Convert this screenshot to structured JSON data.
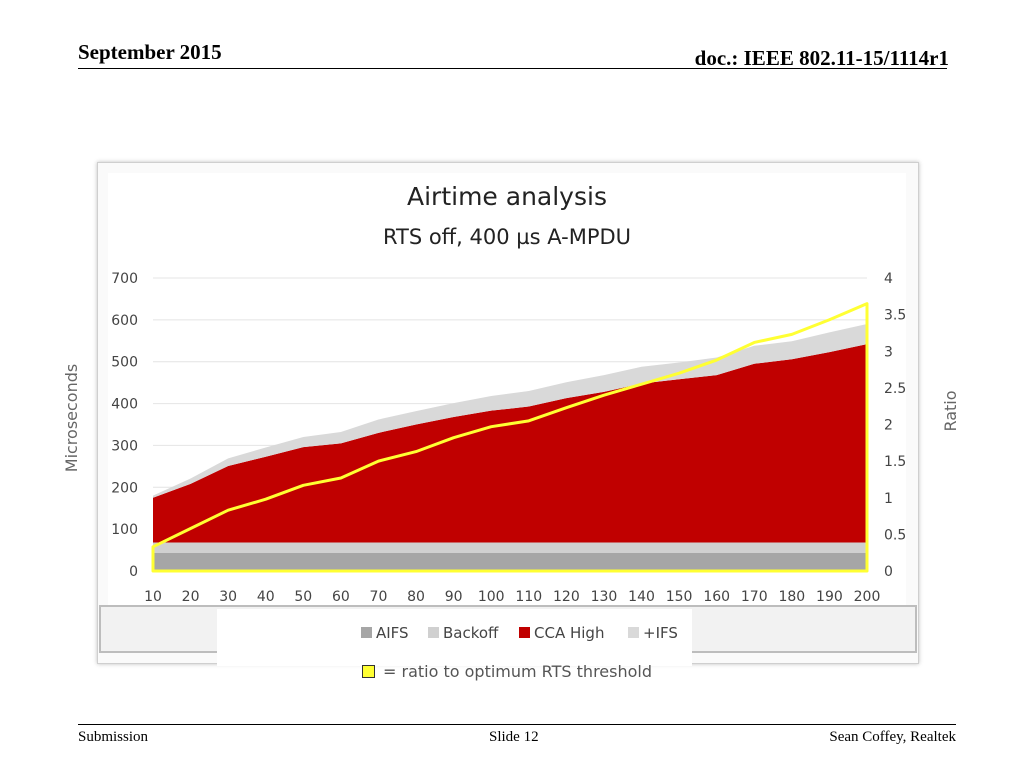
{
  "header": {
    "date": "September 2015",
    "doc": "doc.: IEEE 802.11-15/1114r1"
  },
  "footer": {
    "left": "Submission",
    "center": "Slide 12",
    "right": "Sean Coffey, Realtek"
  },
  "ratio_legend": {
    "label": "= ratio to optimum RTS threshold"
  },
  "colors": {
    "aifs": "#a6a6a6",
    "backoff": "#d0d0d0",
    "cca": "#c00000",
    "ifs": "#d9d9d9",
    "ratio": "#ffff33"
  },
  "chart_data": {
    "type": "area",
    "title": "Airtime analysis",
    "subtitle": "RTS off, 400 µs A-MPDU",
    "xlabel": "",
    "ylabel": "Microseconds",
    "y2label": "Ratio",
    "x": [
      10,
      20,
      30,
      40,
      50,
      60,
      70,
      80,
      90,
      100,
      110,
      120,
      130,
      140,
      150,
      160,
      170,
      180,
      190,
      200
    ],
    "ylim": [
      0,
      700
    ],
    "y2lim": [
      0,
      4
    ],
    "yticks": [
      0,
      100,
      200,
      300,
      400,
      500,
      600,
      700
    ],
    "y2ticks": [
      "0",
      "0.5",
      "1",
      "1.5",
      "2",
      "2.5",
      "3",
      "3.5",
      "4"
    ],
    "series": [
      {
        "name": "AIFS",
        "values": [
          43,
          43,
          43,
          43,
          43,
          43,
          43,
          43,
          43,
          43,
          43,
          43,
          43,
          43,
          43,
          43,
          43,
          43,
          43,
          43
        ]
      },
      {
        "name": "Backoff",
        "values": [
          25,
          25,
          25,
          25,
          25,
          25,
          25,
          25,
          25,
          25,
          25,
          25,
          25,
          25,
          25,
          25,
          25,
          25,
          25,
          25
        ]
      },
      {
        "name": "CCA High",
        "values": [
          107,
          140,
          183,
          205,
          228,
          237,
          262,
          282,
          300,
          315,
          325,
          345,
          360,
          380,
          390,
          400,
          427,
          438,
          455,
          474
        ]
      },
      {
        "name": "+IFS",
        "values": [
          5,
          13,
          18,
          22,
          24,
          27,
          32,
          32,
          33,
          35,
          37,
          38,
          40,
          40,
          40,
          42,
          43,
          43,
          47,
          48
        ]
      }
    ],
    "ratio": {
      "name": "Ratio",
      "values": [
        0.33,
        0.58,
        0.83,
        0.98,
        1.17,
        1.27,
        1.5,
        1.63,
        1.82,
        1.97,
        2.05,
        2.23,
        2.4,
        2.55,
        2.7,
        2.88,
        3.12,
        3.23,
        3.43,
        3.65
      ]
    },
    "legend": [
      "AIFS",
      "Backoff",
      "CCA High",
      "+IFS"
    ]
  }
}
